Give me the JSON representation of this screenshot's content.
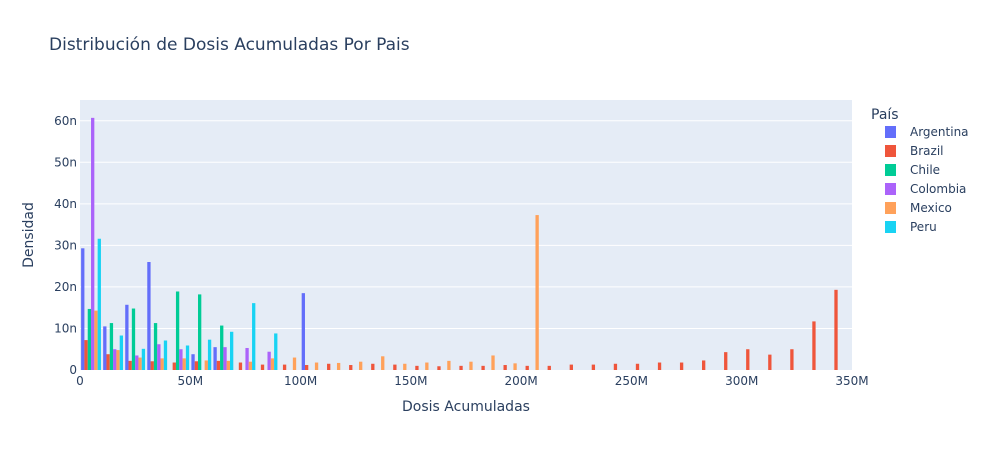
{
  "chart_data": {
    "type": "bar",
    "title": "Distribución de Dosis Acumuladas Por Pais",
    "xlabel": "Dosis Acumuladas",
    "ylabel": "Densidad",
    "xlim": [
      0,
      350000000
    ],
    "ylim": [
      0,
      6.5e-08
    ],
    "x_ticks": [
      {
        "v": 0,
        "label": "0"
      },
      {
        "v": 50000000,
        "label": "50M"
      },
      {
        "v": 100000000,
        "label": "100M"
      },
      {
        "v": 150000000,
        "label": "150M"
      },
      {
        "v": 200000000,
        "label": "200M"
      },
      {
        "v": 250000000,
        "label": "250M"
      },
      {
        "v": 300000000,
        "label": "300M"
      },
      {
        "v": 350000000,
        "label": "350M"
      }
    ],
    "y_ticks": [
      {
        "v": 0,
        "label": "0"
      },
      {
        "v": 1e-08,
        "label": "10n"
      },
      {
        "v": 2e-08,
        "label": "20n"
      },
      {
        "v": 3e-08,
        "label": "30n"
      },
      {
        "v": 4e-08,
        "label": "40n"
      },
      {
        "v": 5e-08,
        "label": "50n"
      },
      {
        "v": 6e-08,
        "label": "60n"
      }
    ],
    "grid": true,
    "legend_title": "País",
    "legend_position": "top-right",
    "bin_width": 10000000,
    "series": [
      {
        "name": "Argentina",
        "color": "#636efa",
        "bins": [
          [
            0,
            29.3
          ],
          [
            10,
            10.5
          ],
          [
            20,
            15.7
          ],
          [
            30,
            26.0
          ],
          [
            50,
            3.8
          ],
          [
            60,
            5.5
          ],
          [
            100,
            18.5
          ]
        ]
      },
      {
        "name": "Brazil",
        "color": "#ef553b",
        "bins": [
          [
            0,
            7.2
          ],
          [
            10,
            3.8
          ],
          [
            20,
            2.2
          ],
          [
            30,
            2.1
          ],
          [
            40,
            1.8
          ],
          [
            50,
            2.1
          ],
          [
            60,
            2.2
          ],
          [
            70,
            1.8
          ],
          [
            80,
            1.3
          ],
          [
            90,
            1.3
          ],
          [
            100,
            1.2
          ],
          [
            110,
            1.5
          ],
          [
            120,
            1.2
          ],
          [
            130,
            1.5
          ],
          [
            140,
            1.3
          ],
          [
            150,
            1.0
          ],
          [
            160,
            0.9
          ],
          [
            170,
            1.0
          ],
          [
            180,
            1.0
          ],
          [
            190,
            1.2
          ],
          [
            200,
            1.0
          ],
          [
            210,
            1.0
          ],
          [
            220,
            1.3
          ],
          [
            230,
            1.3
          ],
          [
            240,
            1.5
          ],
          [
            250,
            1.5
          ],
          [
            260,
            1.8
          ],
          [
            270,
            1.8
          ],
          [
            280,
            2.3
          ],
          [
            290,
            4.3
          ],
          [
            300,
            5.0
          ],
          [
            310,
            3.7
          ],
          [
            320,
            5.0
          ],
          [
            330,
            11.7
          ],
          [
            340,
            19.3
          ]
        ]
      },
      {
        "name": "Chile",
        "color": "#00cc96",
        "bins": [
          [
            0,
            14.7
          ],
          [
            10,
            11.3
          ],
          [
            20,
            14.8
          ],
          [
            30,
            11.3
          ],
          [
            40,
            18.9
          ],
          [
            50,
            18.2
          ],
          [
            60,
            10.7
          ]
        ]
      },
      {
        "name": "Colombia",
        "color": "#ab63fa",
        "bins": [
          [
            0,
            60.7
          ],
          [
            10,
            5.0
          ],
          [
            20,
            3.5
          ],
          [
            30,
            6.2
          ],
          [
            40,
            5.0
          ],
          [
            60,
            5.5
          ],
          [
            70,
            5.3
          ],
          [
            80,
            4.4
          ]
        ]
      },
      {
        "name": "Mexico",
        "color": "#ffa15a",
        "bins": [
          [
            0,
            14.3
          ],
          [
            10,
            4.8
          ],
          [
            20,
            3.0
          ],
          [
            30,
            2.8
          ],
          [
            40,
            2.8
          ],
          [
            50,
            2.3
          ],
          [
            60,
            2.2
          ],
          [
            70,
            2.0
          ],
          [
            80,
            2.8
          ],
          [
            90,
            3.0
          ],
          [
            100,
            1.8
          ],
          [
            110,
            1.7
          ],
          [
            120,
            2.0
          ],
          [
            130,
            3.3
          ],
          [
            140,
            1.5
          ],
          [
            150,
            1.8
          ],
          [
            160,
            2.2
          ],
          [
            170,
            2.0
          ],
          [
            180,
            3.5
          ],
          [
            190,
            1.6
          ],
          [
            200,
            37.3
          ]
        ]
      },
      {
        "name": "Peru",
        "color": "#19d3f3",
        "bins": [
          [
            0,
            31.6
          ],
          [
            10,
            8.3
          ],
          [
            20,
            5.1
          ],
          [
            30,
            7.1
          ],
          [
            40,
            5.9
          ],
          [
            50,
            7.3
          ],
          [
            60,
            9.2
          ],
          [
            70,
            16.1
          ],
          [
            80,
            8.8
          ]
        ]
      }
    ]
  }
}
